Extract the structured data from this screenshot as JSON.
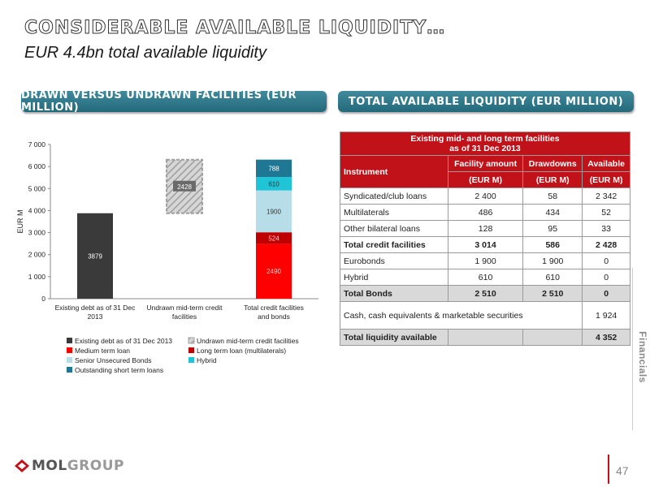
{
  "header": {
    "title": "CONSIDERABLE AVAILABLE LIQUIDITY…",
    "subtitle": "EUR 4.4bn total available liquidity"
  },
  "sections": {
    "left_title": "DRAWN VERSUS UNDRAWN FACILITIES (EUR MILLION)",
    "right_title": "TOTAL AVAILABLE LIQUIDITY (EUR MILLION)"
  },
  "chart_data": {
    "type": "bar",
    "stacked": true,
    "categories": [
      "Existing debt as of 31 Dec 2013",
      "Undrawn mid-term credit facilities",
      "Total credit facilities and bonds"
    ],
    "ylabel": "EUR M",
    "ylim": [
      0,
      7000
    ],
    "yticks": [
      0,
      1000,
      2000,
      3000,
      4000,
      5000,
      6000,
      7000
    ],
    "ytick_labels": [
      "0",
      "1 000",
      "2 000",
      "3 000",
      "4 000",
      "5 000",
      "6 000",
      "7 000"
    ],
    "grid": false,
    "legend_position": "bottom",
    "series": [
      {
        "name": "Existing debt as of 31 Dec 2013",
        "color": "#3a3a3a",
        "values": [
          3879,
          null,
          null
        ],
        "labels": [
          "3879",
          "",
          ""
        ]
      },
      {
        "name": "Undrawn mid-term credit facilities",
        "color": "#bfbfbf",
        "pattern": "hatched",
        "values": [
          null,
          2428,
          null
        ],
        "labels": [
          "",
          "2428",
          ""
        ]
      },
      {
        "name": "Medium term loan",
        "color": "#ff0000",
        "values": [
          null,
          null,
          2490
        ],
        "labels": [
          "",
          "",
          "2490"
        ]
      },
      {
        "name": "Long term loan (multilaterals)",
        "color": "#c00000",
        "values": [
          null,
          null,
          524
        ],
        "labels": [
          "",
          "",
          "524"
        ]
      },
      {
        "name": "Senior Unsecured Bonds",
        "color": "#b7dee8",
        "values": [
          null,
          null,
          1900
        ],
        "labels": [
          "",
          "",
          "1900"
        ]
      },
      {
        "name": "Hybrid",
        "color": "#1fc4d6",
        "values": [
          null,
          null,
          610
        ],
        "labels": [
          "",
          "",
          "610"
        ]
      },
      {
        "name": "Outstanding short term loans",
        "color": "#1f7893",
        "values": [
          null,
          null,
          788
        ],
        "labels": [
          "",
          "",
          "788"
        ]
      }
    ],
    "floating_base": [
      null,
      3879,
      null
    ]
  },
  "table": {
    "title_line1": "Existing mid- and long term facilities",
    "title_line2": "as of 31 Dec 2013",
    "col_instrument": "Instrument",
    "col_facility": "Facility amount",
    "col_drawdowns": "Drawdowns",
    "col_available": "Available",
    "units": [
      "(EUR M)",
      "(EUR M)",
      "(EUR M)"
    ],
    "rows": [
      {
        "label": "Syndicated/club loans",
        "facility": "2 400",
        "drawdowns": "58",
        "available": "2 342"
      },
      {
        "label": "Multilaterals",
        "facility": "486",
        "drawdowns": "434",
        "available": "52"
      },
      {
        "label": "Other bilateral loans",
        "facility": "128",
        "drawdowns": "95",
        "available": "33"
      },
      {
        "label": "Total credit facilities",
        "facility": "3 014",
        "drawdowns": "586",
        "available": "2 428"
      },
      {
        "label": "Eurobonds",
        "facility": "1 900",
        "drawdowns": "1 900",
        "available": "0"
      },
      {
        "label": "Hybrid",
        "facility": "610",
        "drawdowns": "610",
        "available": "0"
      },
      {
        "label": "Total Bonds",
        "facility": "2 510",
        "drawdowns": "2 510",
        "available": "0"
      },
      {
        "label": "Cash, cash equivalents & marketable securities",
        "facility": "",
        "drawdowns": "",
        "available": "1 924"
      },
      {
        "label": "Total liquidity available",
        "facility": "",
        "drawdowns": "",
        "available": "4 352"
      }
    ]
  },
  "sidebar": {
    "label": "Financials"
  },
  "footer": {
    "logo_part1": "MOL",
    "logo_part2": "GROUP",
    "page_number": "47"
  }
}
